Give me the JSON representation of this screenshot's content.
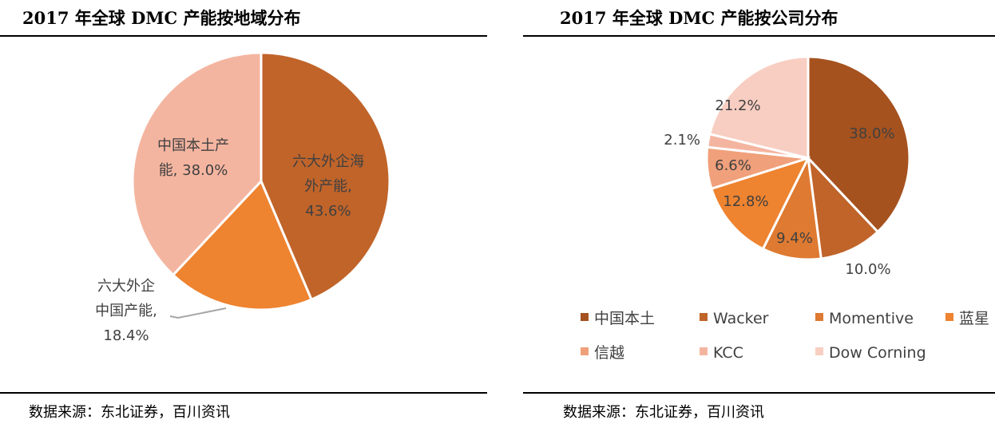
{
  "colors": {
    "dark_brown": "#A5521F",
    "brown": "#C0642A",
    "orange_mid": "#DE7A31",
    "orange": "#EE8330",
    "salmon": "#F0A07A",
    "light_salmon": "#F4B5A0",
    "pale_pink": "#F8CEC2",
    "left_slice_1": "#C0642A",
    "left_slice_2": "#EE8330",
    "left_slice_3": "#F4B5A0"
  },
  "left": {
    "title": "2017 年全球 DMC 产能按地域分布",
    "source": "数据来源：东北证券，百川资讯"
  },
  "right": {
    "title": "2017 年全球 DMC 产能按公司分布",
    "source": "数据来源：东北证券，百川资讯"
  },
  "chart_data": [
    {
      "type": "pie",
      "title": "2017 年全球 DMC 产能按地域分布",
      "slices": [
        {
          "label_lines": [
            "六大外企海",
            "外产能,",
            "43.6%"
          ],
          "value": 43.6
        },
        {
          "label_lines": [
            "六大外企",
            "中国产能,",
            "18.4%"
          ],
          "value": 18.4
        },
        {
          "label_lines": [
            "中国本土产",
            "能, 38.0%"
          ],
          "value": 38.0
        }
      ]
    },
    {
      "type": "pie",
      "title": "2017 年全球 DMC 产能按公司分布",
      "slices": [
        {
          "name": "中国本土",
          "value": 38.0,
          "label": "38.0%"
        },
        {
          "name": "Wacker",
          "value": 10.0,
          "label": "10.0%"
        },
        {
          "name": "Momentive",
          "value": 9.4,
          "label": "9.4%"
        },
        {
          "name": "蓝星",
          "value": 12.8,
          "label": "12.8%"
        },
        {
          "name": "信越",
          "value": 6.6,
          "label": "6.6%"
        },
        {
          "name": "KCC",
          "value": 2.1,
          "label": "2.1%"
        },
        {
          "name": "Dow Corning",
          "value": 21.2,
          "label": "21.2%"
        }
      ]
    }
  ]
}
